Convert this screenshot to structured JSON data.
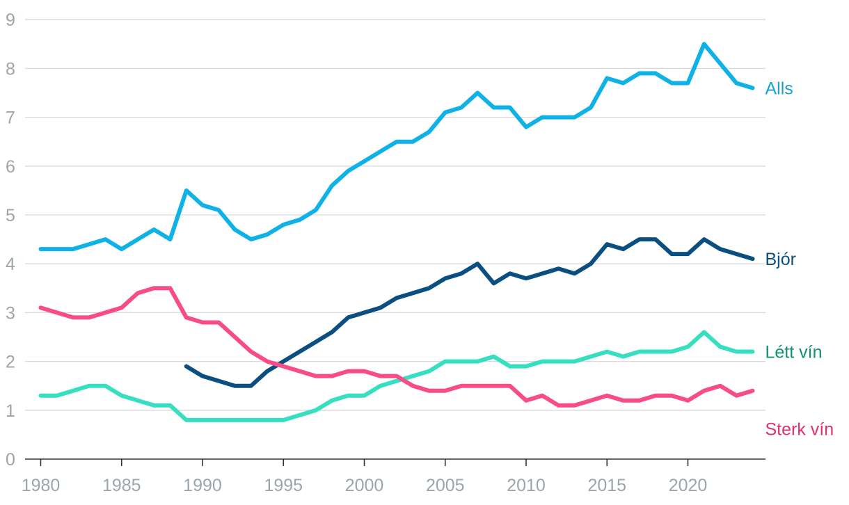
{
  "chart_data": {
    "type": "line",
    "title": "",
    "xlabel": "",
    "ylabel": "",
    "xlim": [
      1979,
      2025
    ],
    "ylim": [
      0,
      9
    ],
    "y_ticks": [
      0,
      1,
      2,
      3,
      4,
      5,
      6,
      7,
      8,
      9
    ],
    "x_ticks": [
      1980,
      1985,
      1990,
      1995,
      2000,
      2005,
      2010,
      2015,
      2020
    ],
    "grid": "horizontal",
    "legend": "inline labels at right end of each line",
    "series": [
      {
        "name": "Alls",
        "color": "#0fb2e6",
        "label_color": "#1a9fd6",
        "x": [
          1980,
          1981,
          1982,
          1983,
          1984,
          1985,
          1986,
          1987,
          1988,
          1989,
          1990,
          1991,
          1992,
          1993,
          1994,
          1995,
          1996,
          1997,
          1998,
          1999,
          2000,
          2001,
          2002,
          2003,
          2004,
          2005,
          2006,
          2007,
          2008,
          2009,
          2010,
          2011,
          2012,
          2013,
          2014,
          2015,
          2016,
          2017,
          2018,
          2019,
          2020,
          2021,
          2022,
          2023,
          2024
        ],
        "values": [
          4.3,
          4.3,
          4.3,
          4.4,
          4.5,
          4.3,
          4.5,
          4.7,
          4.5,
          5.5,
          5.2,
          5.1,
          4.7,
          4.5,
          4.6,
          4.8,
          4.9,
          5.1,
          5.6,
          5.9,
          6.1,
          6.3,
          6.5,
          6.5,
          6.7,
          7.1,
          7.2,
          7.5,
          7.2,
          7.2,
          6.8,
          7.0,
          7.0,
          7.0,
          7.2,
          7.8,
          7.7,
          7.9,
          7.9,
          7.7,
          7.7,
          8.5,
          8.1,
          7.7,
          7.6
        ]
      },
      {
        "name": "Bjór",
        "color": "#0b4f80",
        "label_color": "#0b4f80",
        "x": [
          1989,
          1990,
          1991,
          1992,
          1993,
          1994,
          1995,
          1996,
          1997,
          1998,
          1999,
          2000,
          2001,
          2002,
          2003,
          2004,
          2005,
          2006,
          2007,
          2008,
          2009,
          2010,
          2011,
          2012,
          2013,
          2014,
          2015,
          2016,
          2017,
          2018,
          2019,
          2020,
          2021,
          2022,
          2023,
          2024
        ],
        "values": [
          1.9,
          1.7,
          1.6,
          1.5,
          1.5,
          1.8,
          2.0,
          2.2,
          2.4,
          2.6,
          2.9,
          3.0,
          3.1,
          3.3,
          3.4,
          3.5,
          3.7,
          3.8,
          4.0,
          3.6,
          3.8,
          3.7,
          3.8,
          3.9,
          3.8,
          4.0,
          4.4,
          4.3,
          4.5,
          4.5,
          4.2,
          4.2,
          4.5,
          4.3,
          4.2,
          4.1
        ]
      },
      {
        "name": "Létt vín",
        "color": "#35dfc0",
        "label_color": "#119071",
        "x": [
          1980,
          1981,
          1982,
          1983,
          1984,
          1985,
          1986,
          1987,
          1988,
          1989,
          1990,
          1991,
          1992,
          1993,
          1994,
          1995,
          1996,
          1997,
          1998,
          1999,
          2000,
          2001,
          2002,
          2003,
          2004,
          2005,
          2006,
          2007,
          2008,
          2009,
          2010,
          2011,
          2012,
          2013,
          2014,
          2015,
          2016,
          2017,
          2018,
          2019,
          2020,
          2021,
          2022,
          2023,
          2024
        ],
        "values": [
          1.3,
          1.3,
          1.4,
          1.5,
          1.5,
          1.3,
          1.2,
          1.1,
          1.1,
          0.8,
          0.8,
          0.8,
          0.8,
          0.8,
          0.8,
          0.8,
          0.9,
          1.0,
          1.2,
          1.3,
          1.3,
          1.5,
          1.6,
          1.7,
          1.8,
          2.0,
          2.0,
          2.0,
          2.1,
          1.9,
          1.9,
          2.0,
          2.0,
          2.0,
          2.1,
          2.2,
          2.1,
          2.2,
          2.2,
          2.2,
          2.3,
          2.6,
          2.3,
          2.2,
          2.2
        ]
      },
      {
        "name": "Sterk vín",
        "color": "#f74c86",
        "label_color": "#e0306f",
        "x": [
          1980,
          1981,
          1982,
          1983,
          1984,
          1985,
          1986,
          1987,
          1988,
          1989,
          1990,
          1991,
          1992,
          1993,
          1994,
          1995,
          1996,
          1997,
          1998,
          1999,
          2000,
          2001,
          2002,
          2003,
          2004,
          2005,
          2006,
          2007,
          2008,
          2009,
          2010,
          2011,
          2012,
          2013,
          2014,
          2015,
          2016,
          2017,
          2018,
          2019,
          2020,
          2021,
          2022,
          2023,
          2024
        ],
        "values": [
          3.1,
          3.0,
          2.9,
          2.9,
          3.0,
          3.1,
          3.4,
          3.5,
          3.5,
          2.9,
          2.8,
          2.8,
          2.5,
          2.2,
          2.0,
          1.9,
          1.8,
          1.7,
          1.7,
          1.8,
          1.8,
          1.7,
          1.7,
          1.5,
          1.4,
          1.4,
          1.5,
          1.5,
          1.5,
          1.5,
          1.2,
          1.3,
          1.1,
          1.1,
          1.2,
          1.3,
          1.2,
          1.2,
          1.3,
          1.3,
          1.2,
          1.4,
          1.5,
          1.3,
          1.4
        ]
      }
    ]
  }
}
